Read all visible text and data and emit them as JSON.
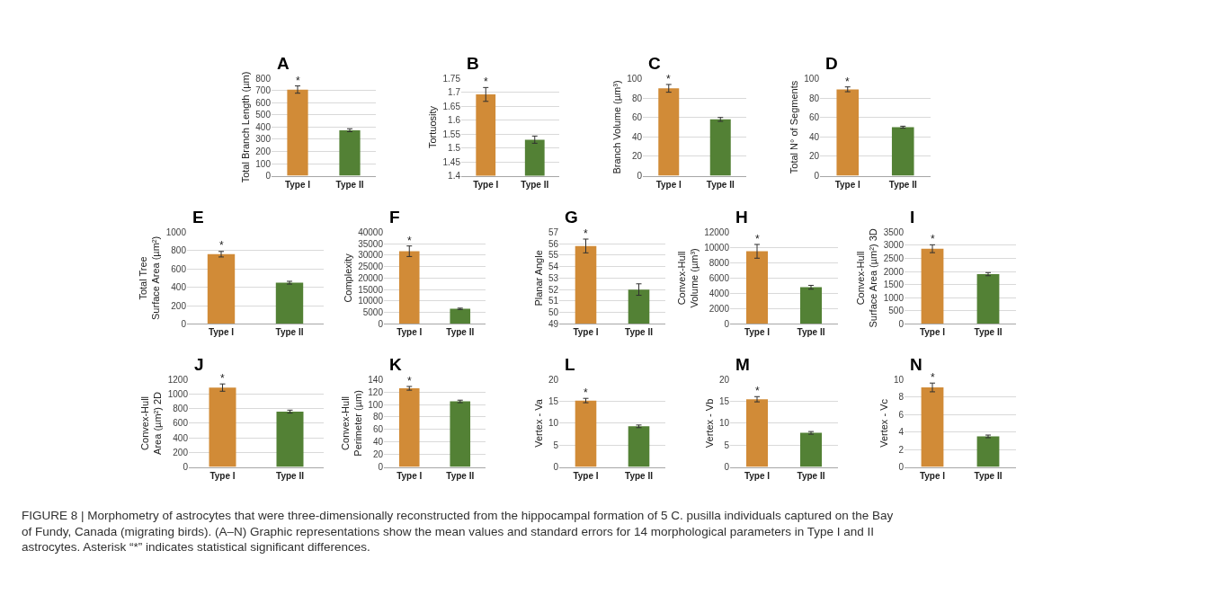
{
  "chart_data": [
    {
      "type": "bar",
      "title": "A",
      "categories": [
        "Type I",
        "Type II"
      ],
      "values": [
        710,
        375
      ],
      "errors": [
        30,
        12
      ],
      "colors": [
        "#d18b37",
        "#538135"
      ],
      "ylabel": "Total Branch Length (µm)",
      "ylim": [
        0,
        800
      ],
      "yticks": [
        0,
        100,
        200,
        300,
        400,
        500,
        600,
        700,
        800
      ],
      "grid": "y",
      "annotations": [
        {
          "text": "*",
          "x": "Type I",
          "y": 740
        }
      ]
    },
    {
      "type": "bar",
      "title": "B",
      "categories": [
        "Type I",
        "Type II"
      ],
      "values": [
        1.693,
        1.53
      ],
      "errors": [
        0.025,
        0.013
      ],
      "colors": [
        "#d18b37",
        "#538135"
      ],
      "ylabel": "Tortuosity",
      "ylim": [
        1.4,
        1.75
      ],
      "yticks": [
        1.4,
        1.45,
        1.5,
        1.55,
        1.6,
        1.65,
        1.7,
        1.75
      ],
      "grid": "y",
      "annotations": [
        {
          "text": "*",
          "x": "Type I",
          "y": 1.718
        }
      ]
    },
    {
      "type": "bar",
      "title": "C",
      "categories": [
        "Type I",
        "Type II"
      ],
      "values": [
        90,
        58
      ],
      "errors": [
        4,
        2
      ],
      "colors": [
        "#d18b37",
        "#538135"
      ],
      "ylabel": "Branch Volume (µm³)",
      "ylim": [
        0,
        100
      ],
      "yticks": [
        0,
        20,
        40,
        60,
        80,
        100
      ],
      "grid": "y",
      "annotations": [
        {
          "text": "*",
          "x": "Type I",
          "y": 94
        }
      ]
    },
    {
      "type": "bar",
      "title": "D",
      "categories": [
        "Type I",
        "Type II"
      ],
      "values": [
        89,
        50
      ],
      "errors": [
        2.5,
        1
      ],
      "colors": [
        "#d18b37",
        "#538135"
      ],
      "ylabel": "Total N° of Segments",
      "ylim": [
        0,
        100
      ],
      "yticks": [
        0,
        20,
        40,
        60,
        80,
        100
      ],
      "grid": "y",
      "annotations": [
        {
          "text": "*",
          "x": "Type I",
          "y": 91.5
        }
      ]
    },
    {
      "type": "bar",
      "title": "E",
      "categories": [
        "Type I",
        "Type II"
      ],
      "values": [
        760,
        450
      ],
      "errors": [
        30,
        15
      ],
      "colors": [
        "#d18b37",
        "#538135"
      ],
      "ylabel": "Total Tree\nSurface Area (µm²)",
      "ylim": [
        0,
        1000
      ],
      "yticks": [
        0,
        200,
        400,
        600,
        800,
        1000
      ],
      "grid": "y",
      "annotations": [
        {
          "text": "*",
          "x": "Type I",
          "y": 795
        }
      ]
    },
    {
      "type": "bar",
      "title": "F",
      "categories": [
        "Type I",
        "Type II"
      ],
      "values": [
        31700,
        6600
      ],
      "errors": [
        2300,
        300
      ],
      "colors": [
        "#d18b37",
        "#538135"
      ],
      "ylabel": "Complexity",
      "ylim": [
        0,
        40000
      ],
      "yticks": [
        0,
        5000,
        10000,
        15000,
        20000,
        25000,
        30000,
        35000,
        40000
      ],
      "grid": "y",
      "annotations": [
        {
          "text": "*",
          "x": "Type I",
          "y": 34000
        }
      ]
    },
    {
      "type": "bar",
      "title": "G",
      "categories": [
        "Type I",
        "Type II"
      ],
      "values": [
        55.8,
        52.0
      ],
      "errors": [
        0.6,
        0.5
      ],
      "colors": [
        "#d18b37",
        "#538135"
      ],
      "ylabel": "Planar Angle",
      "ylim": [
        49,
        57
      ],
      "yticks": [
        49,
        50,
        51,
        52,
        53,
        54,
        55,
        56,
        57
      ],
      "grid": "y",
      "annotations": [
        {
          "text": "*",
          "x": "Type I",
          "y": 56.4
        }
      ]
    },
    {
      "type": "bar",
      "title": "H",
      "categories": [
        "Type I",
        "Type II"
      ],
      "values": [
        9500,
        4800
      ],
      "errors": [
        900,
        250
      ],
      "colors": [
        "#d18b37",
        "#538135"
      ],
      "ylabel": "Convex-Hull\nVolume (µm³)",
      "ylim": [
        0,
        12000
      ],
      "yticks": [
        0,
        2000,
        4000,
        6000,
        8000,
        10000,
        12000
      ],
      "grid": "y",
      "annotations": [
        {
          "text": "*",
          "x": "Type I",
          "y": 10450
        }
      ]
    },
    {
      "type": "bar",
      "title": "I",
      "categories": [
        "Type I",
        "Type II"
      ],
      "values": [
        2870,
        1900
      ],
      "errors": [
        150,
        60
      ],
      "colors": [
        "#d18b37",
        "#538135"
      ],
      "ylabel": "Convex-Hull\nSurface Area (µm²) 3D",
      "ylim": [
        0,
        3500
      ],
      "yticks": [
        0,
        500,
        1000,
        1500,
        2000,
        2500,
        3000,
        3500
      ],
      "grid": "y",
      "annotations": [
        {
          "text": "*",
          "x": "Type I",
          "y": 3020
        }
      ]
    },
    {
      "type": "bar",
      "title": "J",
      "categories": [
        "Type I",
        "Type II"
      ],
      "values": [
        1090,
        760
      ],
      "errors": [
        50,
        20
      ],
      "colors": [
        "#d18b37",
        "#538135"
      ],
      "ylabel": "Convex-Hull\nArea (µm²) 2D",
      "ylim": [
        0,
        1200
      ],
      "yticks": [
        0,
        200,
        400,
        600,
        800,
        1000,
        1200
      ],
      "grid": "y",
      "annotations": [
        {
          "text": "*",
          "x": "Type I",
          "y": 1140
        }
      ]
    },
    {
      "type": "bar",
      "title": "K",
      "categories": [
        "Type I",
        "Type II"
      ],
      "values": [
        126,
        105
      ],
      "errors": [
        3,
        2
      ],
      "colors": [
        "#d18b37",
        "#538135"
      ],
      "ylabel": "Convex-Hull\nPerimeter (µm)",
      "ylim": [
        0,
        140
      ],
      "yticks": [
        0,
        20,
        40,
        60,
        80,
        100,
        120,
        140
      ],
      "grid": "y",
      "annotations": [
        {
          "text": "*",
          "x": "Type I",
          "y": 129
        }
      ]
    },
    {
      "type": "bar",
      "title": "L",
      "categories": [
        "Type I",
        "Type II"
      ],
      "values": [
        15.2,
        9.3
      ],
      "errors": [
        0.5,
        0.3
      ],
      "colors": [
        "#d18b37",
        "#538135"
      ],
      "ylabel": "Vertex - Va",
      "ylim": [
        0,
        20
      ],
      "yticks": [
        0,
        5,
        10,
        15,
        20
      ],
      "grid": "y",
      "annotations": [
        {
          "text": "*",
          "x": "Type I",
          "y": 15.7
        }
      ]
    },
    {
      "type": "bar",
      "title": "M",
      "categories": [
        "Type I",
        "Type II"
      ],
      "values": [
        15.5,
        7.8
      ],
      "errors": [
        0.6,
        0.3
      ],
      "colors": [
        "#d18b37",
        "#538135"
      ],
      "ylabel": "Vertex - Vb",
      "ylim": [
        0,
        20
      ],
      "yticks": [
        0,
        5,
        10,
        15,
        20
      ],
      "grid": "y",
      "annotations": [
        {
          "text": "*",
          "x": "Type I",
          "y": 16.1
        }
      ]
    },
    {
      "type": "bar",
      "title": "N",
      "categories": [
        "Type I",
        "Type II"
      ],
      "values": [
        9.1,
        3.5
      ],
      "errors": [
        0.5,
        0.15
      ],
      "colors": [
        "#d18b37",
        "#538135"
      ],
      "ylabel": "Vertex - Vc",
      "ylim": [
        0,
        10
      ],
      "yticks": [
        0,
        2,
        4,
        6,
        8,
        10
      ],
      "grid": "y",
      "annotations": [
        {
          "text": "*",
          "x": "Type I",
          "y": 9.6
        },
        "FIGURE 8 | Morphometry of astrocytes that were three-dimensionally reconstructed from the hippocampal formation of 5 C. pusilla individuals captured on the Bay\nof Fundy, Canada (migrating birds). (A–N) Graphic representations show the mean values and standard errors for 14 morphological parameters in Type I and II\nastrocytes. Asterisk “*” indicates statistical significant differences."
      ]
    }
  ]
}
